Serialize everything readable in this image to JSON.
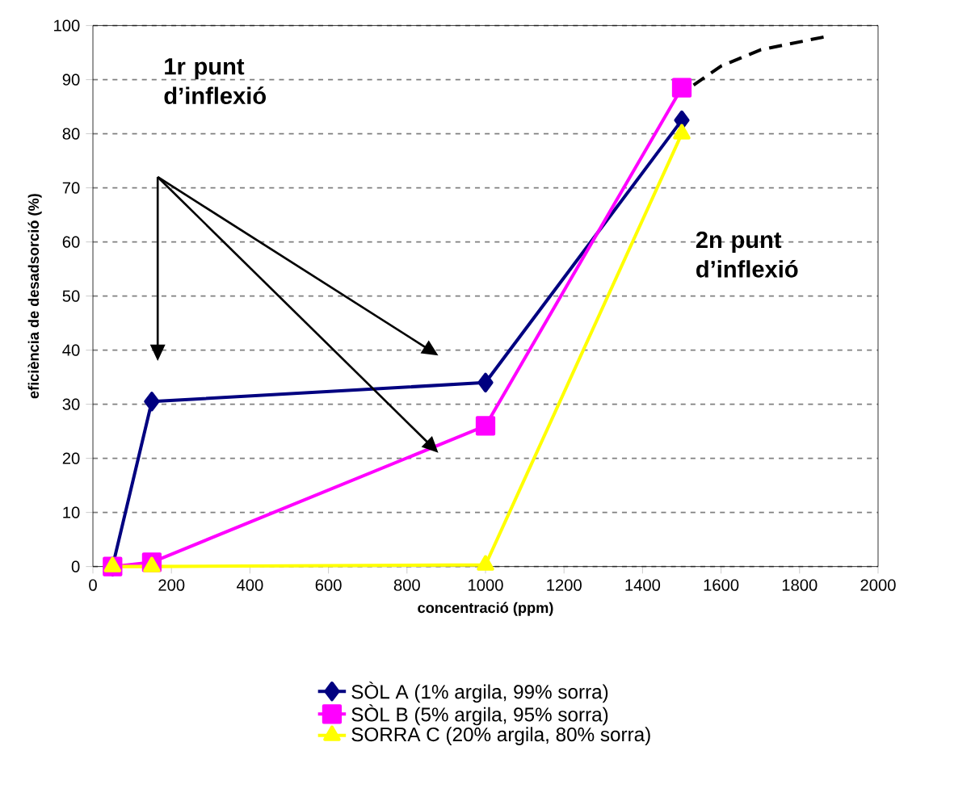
{
  "chart_data": {
    "type": "line",
    "xlabel": "concentració (ppm)",
    "ylabel": "eficiència de desadsorció (%)",
    "x": [
      50,
      150,
      1000,
      1500
    ],
    "series": [
      {
        "name": "SÒL A (1% argila, 99% sorra)",
        "color": "#000080",
        "marker": "diamond",
        "values": [
          0,
          30.5,
          34,
          82.5
        ]
      },
      {
        "name": "SÒL B (5% argila, 95% sorra)",
        "color": "#ff00ff",
        "marker": "square",
        "values": [
          0,
          0.8,
          26,
          88.5
        ]
      },
      {
        "name": "SORRA C (20% argila, 80% sorra)",
        "color": "#ffff00",
        "marker": "triangle",
        "values": [
          0,
          0,
          0.3,
          80
        ]
      },
      {
        "color": "#000000",
        "marker": "none",
        "line_style": "dashed",
        "x": [
          1530,
          1600,
          1700,
          1870
        ],
        "values": [
          89,
          92.5,
          95.5,
          98
        ]
      }
    ],
    "xlim": [
      0,
      2000
    ],
    "xticks": [
      0,
      200,
      400,
      600,
      800,
      1000,
      1200,
      1400,
      1600,
      1800,
      2000
    ],
    "ylim": [
      0,
      100
    ],
    "yticks": [
      0,
      10,
      20,
      30,
      40,
      50,
      60,
      70,
      80,
      90,
      100
    ],
    "grid": "y",
    "legend": "bottom",
    "annotations": [
      "1r punt d’inflexió",
      "2n punt d’inflexió"
    ]
  }
}
